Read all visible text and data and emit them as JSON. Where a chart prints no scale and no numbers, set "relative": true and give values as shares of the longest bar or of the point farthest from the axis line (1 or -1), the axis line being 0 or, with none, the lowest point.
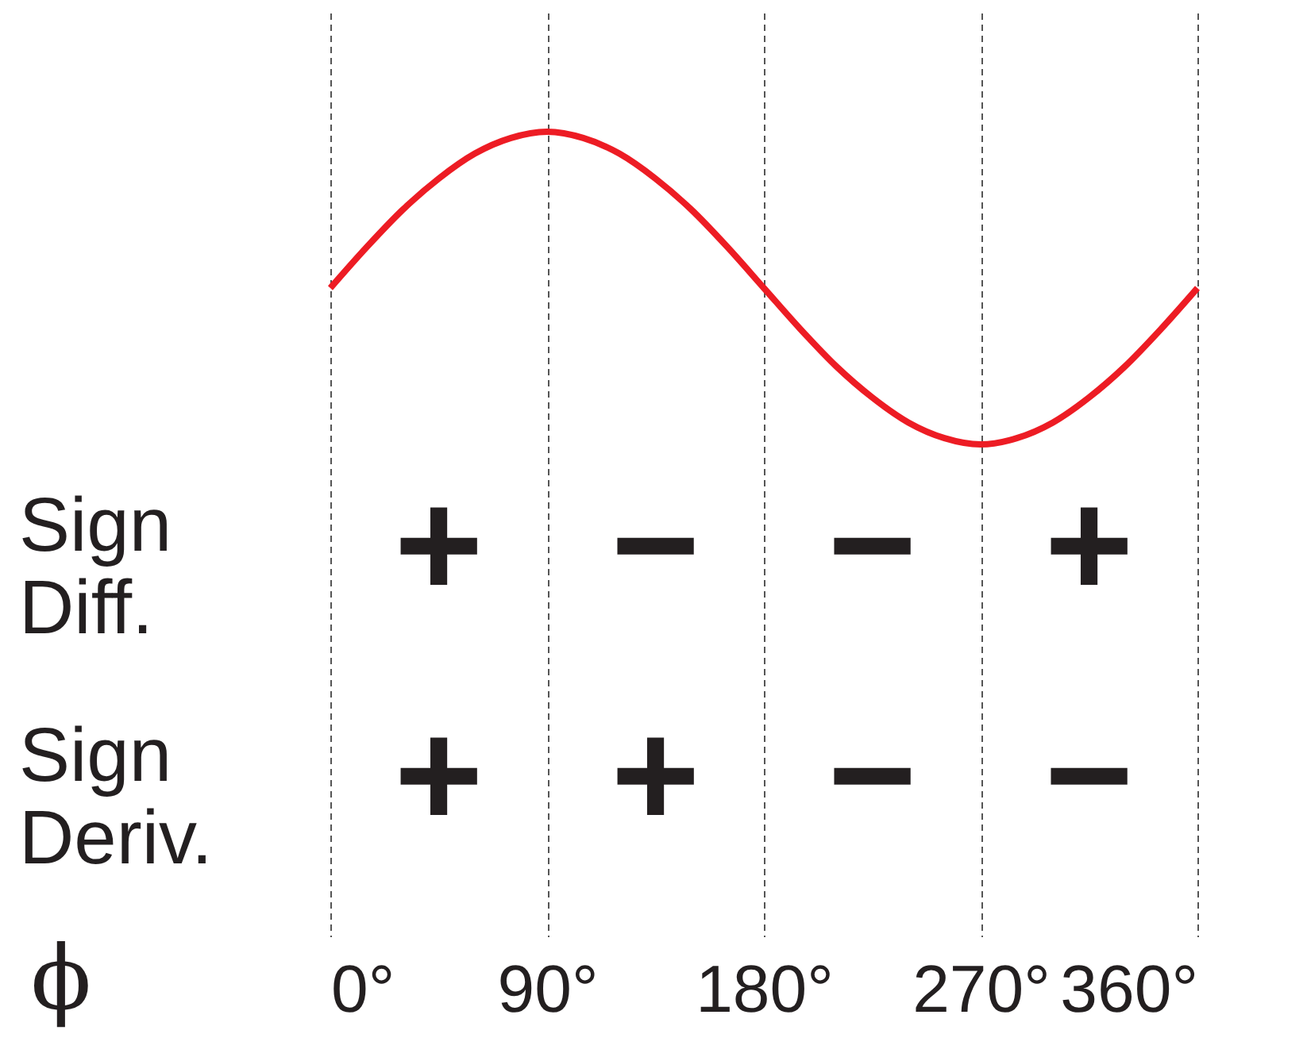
{
  "chart_data": {
    "type": "line",
    "relative": true,
    "xlabel": "ϕ",
    "x": [
      0,
      15,
      30,
      45,
      60,
      75,
      90,
      105,
      120,
      135,
      150,
      165,
      180,
      195,
      210,
      225,
      240,
      255,
      270,
      285,
      300,
      315,
      330,
      345,
      360
    ],
    "series": [
      {
        "color": "#ed1c24",
        "values": [
          0.5,
          0.63,
          0.75,
          0.85,
          0.93,
          0.98,
          1,
          0.98,
          0.93,
          0.85,
          0.75,
          0.63,
          0.5,
          0.37,
          0.25,
          0.15,
          0.07,
          0.02,
          0,
          0.02,
          0.07,
          0.15,
          0.25,
          0.37,
          0.5
        ]
      }
    ],
    "xlim": [
      0,
      360
    ],
    "xticks": [
      {
        "value": 0,
        "label": "0°"
      },
      {
        "value": 90,
        "label": "90°"
      },
      {
        "value": 180,
        "label": "180°"
      },
      {
        "value": 270,
        "label": "270°"
      },
      {
        "value": 360,
        "label": "360°"
      }
    ],
    "grid": "x",
    "line_style": "solid",
    "marker": "none",
    "annotations": [
      "Sign Diff.",
      "+",
      "−",
      "−",
      "+",
      "Sign Deriv.",
      "+",
      "+",
      "−",
      "−"
    ]
  }
}
